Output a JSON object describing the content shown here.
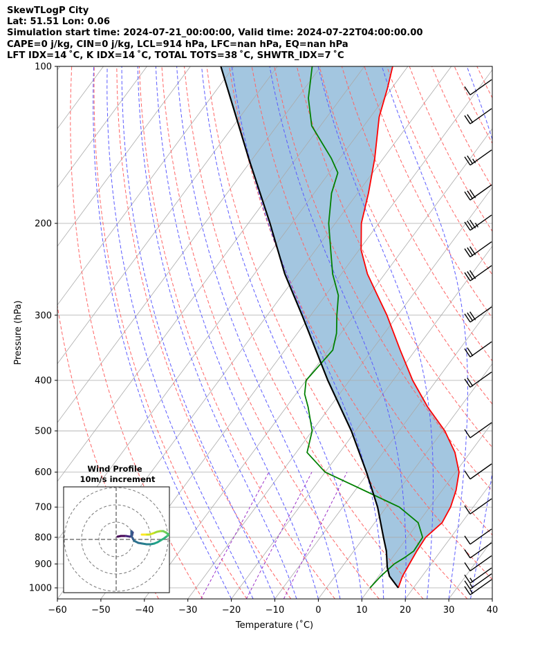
{
  "header": {
    "line1": "SkewTLogP City",
    "line2": "Lat: 51.51   Lon: 0.06",
    "line3": "Simulation start time: 2024-07-21_00:00:00, Valid time: 2024-07-22T04:00:00.00",
    "line4": "CAPE=0 j/kg, CIN=0 j/kg, LCL=914 hPa, LFC=nan hPa, EQ=nan hPa",
    "line5": "LFT IDX=14 ˚C, K IDX=14 ˚C, TOTAL TOTS=38 ˚C, SHWTR_IDX=7 ˚C"
  },
  "chart_data": {
    "type": "line",
    "subtype": "skew-t log-p diagram",
    "xlabel": "Temperature (˚C)",
    "ylabel": "Pressure (hPa)",
    "xlim": [
      -60,
      40
    ],
    "ylim": [
      1050,
      100
    ],
    "y_scale": "log",
    "x_ticks": [
      -60,
      -50,
      -40,
      -30,
      -20,
      -10,
      0,
      10,
      20,
      30,
      40
    ],
    "y_ticks": [
      1000,
      900,
      800,
      700,
      600,
      500,
      400,
      300,
      200,
      100
    ],
    "grid": true,
    "colors": {
      "temperature": "#ff0000",
      "dewpoint": "#008000",
      "parcel": "#000000",
      "shade": "#a3c6e0",
      "dry_adiabats": "#ff6464",
      "moist_adiabats": "#5a5aff",
      "mixing_ratio": "#9b30c8",
      "isotherms": "#aaaaaa",
      "barbs": "#000000"
    },
    "series": [
      {
        "name": "Temperature",
        "points": [
          [
            1000,
            16.5
          ],
          [
            950,
            15.5
          ],
          [
            900,
            15
          ],
          [
            850,
            14.5
          ],
          [
            800,
            14.2
          ],
          [
            750,
            15.5
          ],
          [
            700,
            14.8
          ],
          [
            650,
            13.2
          ],
          [
            600,
            10.8
          ],
          [
            550,
            6.5
          ],
          [
            500,
            0.5
          ],
          [
            450,
            -7.5
          ],
          [
            400,
            -15.5
          ],
          [
            350,
            -23.5
          ],
          [
            300,
            -32.5
          ],
          [
            275,
            -38
          ],
          [
            250,
            -44
          ],
          [
            225,
            -49.5
          ],
          [
            200,
            -54
          ],
          [
            175,
            -57.5
          ],
          [
            150,
            -62
          ],
          [
            125,
            -68
          ],
          [
            110,
            -71
          ],
          [
            100,
            -73.5
          ]
        ]
      },
      {
        "name": "Dewpoint",
        "points": [
          [
            1000,
            10
          ],
          [
            950,
            10.5
          ],
          [
            900,
            11.5
          ],
          [
            875,
            12.8
          ],
          [
            850,
            13.8
          ],
          [
            800,
            13.5
          ],
          [
            750,
            10
          ],
          [
            700,
            3
          ],
          [
            650,
            -8
          ],
          [
            600,
            -20
          ],
          [
            550,
            -27.5
          ],
          [
            500,
            -30
          ],
          [
            450,
            -35
          ],
          [
            425,
            -38
          ],
          [
            400,
            -40
          ],
          [
            375,
            -39.5
          ],
          [
            350,
            -39
          ],
          [
            325,
            -41
          ],
          [
            300,
            -44
          ],
          [
            275,
            -47
          ],
          [
            250,
            -52
          ],
          [
            225,
            -56.5
          ],
          [
            200,
            -61.5
          ],
          [
            175,
            -66
          ],
          [
            160,
            -68
          ],
          [
            150,
            -72
          ],
          [
            130,
            -82
          ],
          [
            115,
            -87.5
          ],
          [
            100,
            -92
          ]
        ]
      },
      {
        "name": "Parcel",
        "points": [
          [
            1000,
            16.5
          ],
          [
            950,
            12.5
          ],
          [
            914,
            10.5
          ],
          [
            850,
            7.5
          ],
          [
            800,
            4.5
          ],
          [
            700,
            -2
          ],
          [
            600,
            -10.5
          ],
          [
            500,
            -21
          ],
          [
            400,
            -35
          ],
          [
            300,
            -52
          ],
          [
            250,
            -63
          ],
          [
            200,
            -75
          ],
          [
            150,
            -91
          ],
          [
            100,
            -113
          ]
        ]
      }
    ],
    "wind_barbs": [
      {
        "p": 1000,
        "speed_kt": 15
      },
      {
        "p": 975,
        "speed_kt": 15
      },
      {
        "p": 950,
        "speed_kt": 15
      },
      {
        "p": 900,
        "speed_kt": 10
      },
      {
        "p": 850,
        "speed_kt": 10
      },
      {
        "p": 800,
        "speed_kt": 10
      },
      {
        "p": 700,
        "speed_kt": 10
      },
      {
        "p": 600,
        "speed_kt": 10
      },
      {
        "p": 500,
        "speed_kt": 10
      },
      {
        "p": 400,
        "speed_kt": 20
      },
      {
        "p": 350,
        "speed_kt": 20
      },
      {
        "p": 300,
        "speed_kt": 30
      },
      {
        "p": 250,
        "speed_kt": 30
      },
      {
        "p": 225,
        "speed_kt": 30
      },
      {
        "p": 200,
        "speed_kt": 35
      },
      {
        "p": 175,
        "speed_kt": 30
      },
      {
        "p": 150,
        "speed_kt": 25
      },
      {
        "p": 125,
        "speed_kt": 20
      },
      {
        "p": 110,
        "speed_kt": 10
      }
    ],
    "wind_profile_inset": {
      "title_line1": "Wind Profile",
      "title_line2": "10m/s increment",
      "rings": 3
    }
  }
}
